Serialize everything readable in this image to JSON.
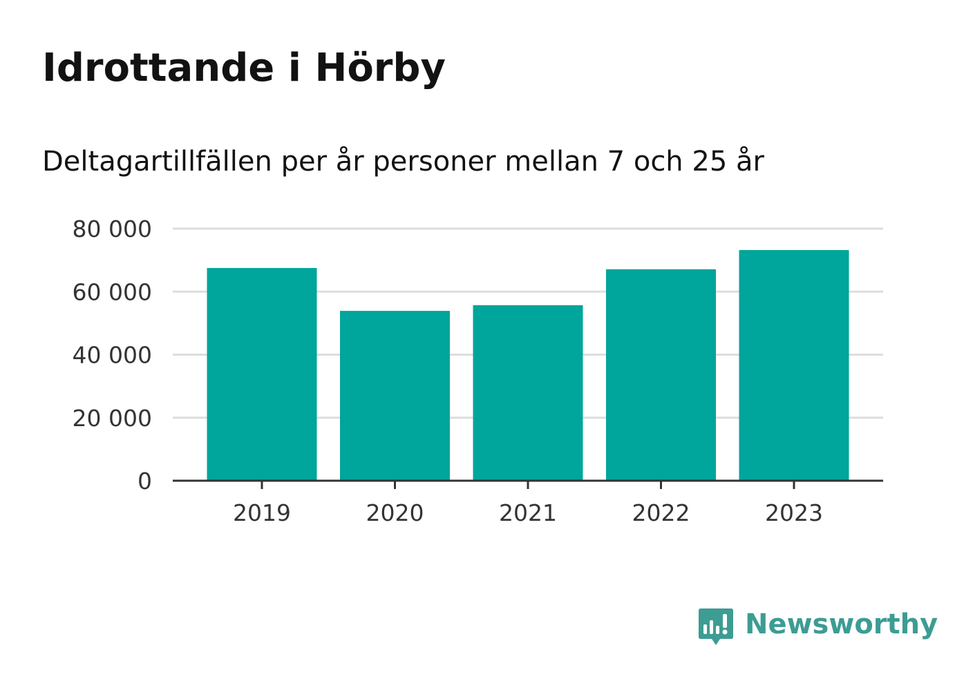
{
  "chart_data": {
    "type": "bar",
    "title": "Idrottande i Hörby",
    "subtitle": "Deltagartillfällen per år personer mellan 7 och 25 år",
    "categories": [
      "2019",
      "2020",
      "2021",
      "2022",
      "2023"
    ],
    "values": [
      67500,
      53900,
      55700,
      67100,
      73200
    ],
    "ylim": [
      0,
      80000
    ],
    "yticks": [
      0,
      20000,
      40000,
      60000,
      80000
    ],
    "ytick_labels": [
      "0",
      "20 000",
      "40 000",
      "60 000",
      "80 000"
    ],
    "grid": true,
    "bar_color": "#00a59b",
    "grid_color": "#dddddd",
    "axis_color": "#333333"
  },
  "brand": {
    "name": "Newsworthy",
    "color": "#3d9c93",
    "icon": "newsworthy-logo-icon"
  }
}
